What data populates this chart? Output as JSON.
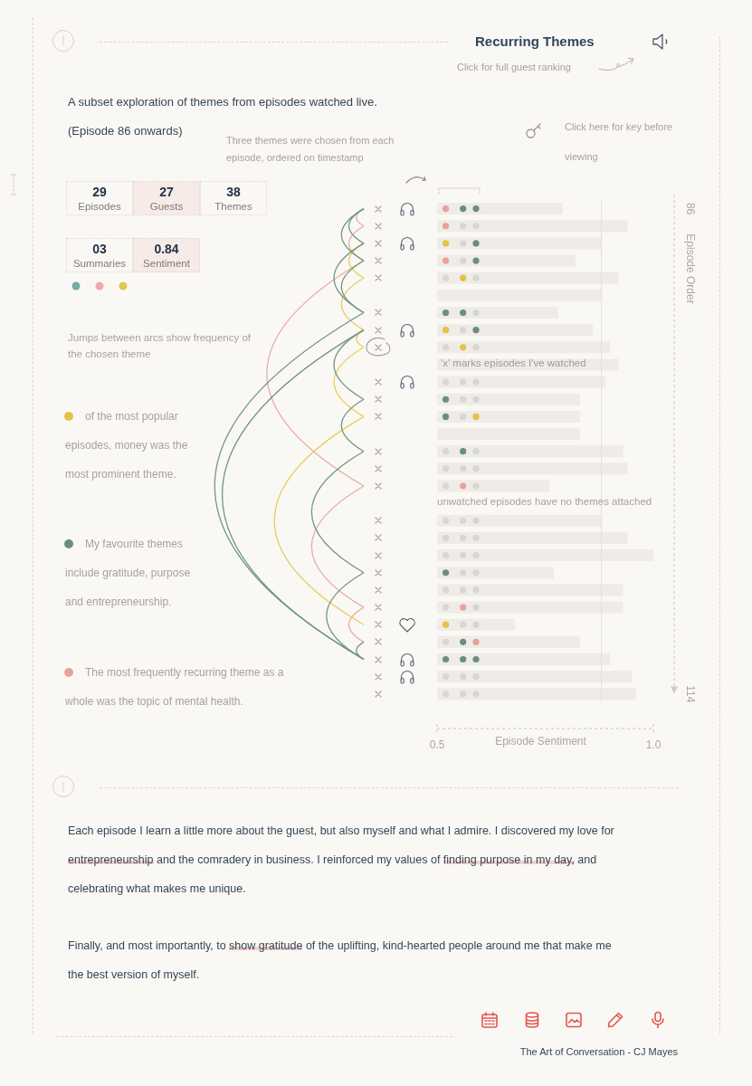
{
  "chart_data": {
    "type": "bar",
    "orientation": "horizontal",
    "title": "Recurring Themes",
    "subtitle": "A subset exploration of themes from episodes watched live.",
    "xlabel": "Episode Sentiment",
    "ylabel": "Episode Order",
    "categories": [
      "86",
      null,
      null,
      null,
      null,
      null,
      null,
      null,
      null,
      null,
      null,
      null,
      null,
      null,
      null,
      null,
      null,
      null,
      null,
      null,
      null,
      null,
      null,
      null,
      null,
      null,
      null,
      null,
      "114"
    ],
    "xlim": [
      0.5,
      1.0
    ],
    "xticks": [
      0.5,
      {
        "value": 1.0,
        "label": "1.0"
      }
    ],
    "marker": "circle",
    "series": [
      {
        "color": "#efebe6",
        "values": [
          0.79,
          0.94,
          0.88,
          0.82,
          0.92,
          0.88,
          0.78,
          0.86,
          0.9,
          0.92,
          0.89,
          0.83,
          0.83,
          0.83,
          0.93,
          0.94,
          0.76,
          null,
          0.88,
          0.94,
          1.0,
          0.77,
          0.93,
          0.93,
          0.68,
          0.83,
          0.9,
          0.95,
          0.96
        ]
      },
      {
        "type": "scatter",
        "values": [
          0.52,
          0.52,
          0.52,
          0.52,
          0.52,
          null,
          0.52,
          0.52,
          0.52,
          null,
          0.52,
          0.52,
          0.52,
          null,
          0.52,
          0.52,
          0.52,
          null,
          0.52,
          0.52,
          0.52,
          0.52,
          0.52,
          0.52,
          0.52,
          0.52,
          0.52,
          0.52,
          0.52
        ],
        "colors": [
          "#e8a19b",
          "#e8a19b",
          "#e2c247",
          "#e8a19b",
          "#d9d6d2",
          null,
          "#6b8e7a",
          "#e2c247",
          "#d9d6d2",
          null,
          "#d9d6d2",
          "#6b8e7a",
          "#6b8e7a",
          null,
          "#d9d6d2",
          "#d9d6d2",
          "#d9d6d2",
          null,
          "#d9d6d2",
          "#d9d6d2",
          "#d9d6d2",
          "#6b8e7a",
          "#d9d6d2",
          "#d9d6d2",
          "#e2c247",
          "#d9d6d2",
          "#6b8e7a",
          "#d9d6d2",
          "#d9d6d2"
        ]
      },
      {
        "type": "scatter",
        "values": [
          0.56,
          0.56,
          0.56,
          0.56,
          0.56,
          null,
          0.56,
          0.56,
          0.56,
          null,
          0.56,
          0.56,
          0.56,
          null,
          0.56,
          0.56,
          0.56,
          null,
          0.56,
          0.56,
          0.56,
          0.56,
          0.56,
          0.56,
          0.56,
          0.56,
          0.56,
          0.56,
          0.56
        ],
        "colors": [
          "#6b8e7a",
          "#d9d6d2",
          "#d9d6d2",
          "#d9d6d2",
          "#e2c247",
          null,
          "#6b8e7a",
          "#d9d6d2",
          "#e2c247",
          null,
          "#d9d6d2",
          "#d9d6d2",
          "#d9d6d2",
          null,
          "#6b8e7a",
          "#d9d6d2",
          "#e8a19b",
          null,
          "#d9d6d2",
          "#d9d6d2",
          "#d9d6d2",
          "#d9d6d2",
          "#d9d6d2",
          "#e8a19b",
          "#d9d6d2",
          "#6b8e7a",
          "#6b8e7a",
          "#d9d6d2",
          "#d9d6d2"
        ]
      },
      {
        "type": "scatter",
        "values": [
          0.59,
          0.59,
          0.59,
          0.59,
          0.59,
          null,
          0.59,
          0.59,
          0.59,
          null,
          0.59,
          0.59,
          0.59,
          null,
          0.59,
          0.59,
          0.59,
          null,
          0.59,
          0.59,
          0.59,
          0.59,
          0.59,
          0.59,
          0.59,
          0.59,
          0.59,
          0.59,
          0.59
        ],
        "colors": [
          "#6b8e7a",
          "#d9d6d2",
          "#6b8e7a",
          "#6b8e7a",
          "#d9d6d2",
          null,
          "#d9d6d2",
          "#6b8e7a",
          "#d9d6d2",
          null,
          "#d9d6d2",
          "#d9d6d2",
          "#e2c247",
          null,
          "#d9d6d2",
          "#d9d6d2",
          "#d9d6d2",
          null,
          "#d9d6d2",
          "#d9d6d2",
          "#d9d6d2",
          "#d9d6d2",
          "#d9d6d2",
          "#d9d6d2",
          "#d9d6d2",
          "#e8a19b",
          "#6b8e7a",
          "#d9d6d2",
          "#d9d6d2"
        ]
      }
    ],
    "ref_lines": [
      {
        "axis": "x",
        "value": 0.88,
        "color": "#e2ded8"
      }
    ],
    "annotations": [
      "(Episode 86 onwards)",
      "Three themes were chosen from each episode, ordered on timestamp",
      "Click for full guest ranking",
      "Click here for key before viewing",
      "29",
      "Episodes",
      "27",
      "Guests",
      "38",
      "Themes",
      "03",
      "Summaries",
      "0.84",
      "Sentiment",
      "Jumps between arcs show frequency of the chosen theme",
      "of the most popular episodes, money was the most prominent theme.",
      "My favourite themes include gratitude, purpose and entrepreneurship.",
      "The most frequently recurring theme as a whole was the topic of mental health.",
      "'x' marks episodes I've watched",
      "unwatched episodes have no themes attached",
      "Each episode I learn a little more about the guest, but also myself and what I admire. I discovered my love for",
      "entrepreneurship",
      "and the comradery in business. I reinforced my values of",
      "finding purpose in my day,",
      "and",
      "celebrating what makes me unique.",
      "Finally, and most importantly, to",
      "show gratitude",
      "of the uplifting, kind-hearted people around me that make me",
      "the best version of myself.",
      "The Art of Conversation - CJ Mayes"
    ]
  }
}
